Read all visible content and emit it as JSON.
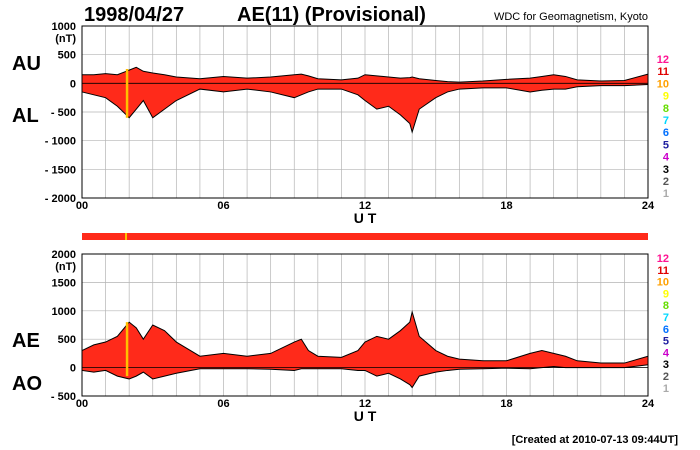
{
  "header": {
    "date": "1998/04/27",
    "index_title": "AE(11) (Provisional)",
    "source": "WDC for Geomagnetism, Kyoto"
  },
  "footer": {
    "created": "[Created at 2010-07-13 09:44UT]"
  },
  "colors": {
    "fill": "#ff2a1a",
    "spike": "#ffc000",
    "grid": "#b4b4b4",
    "axis": "#000000"
  },
  "station_scale": [
    {
      "label": "12",
      "color": "#ff1493"
    },
    {
      "label": "11",
      "color": "#e00000"
    },
    {
      "label": "10",
      "color": "#ffa000"
    },
    {
      "label": "9",
      "color": "#ffff00"
    },
    {
      "label": "8",
      "color": "#66dd00"
    },
    {
      "label": "7",
      "color": "#00d8ff"
    },
    {
      "label": "6",
      "color": "#0070ff"
    },
    {
      "label": "5",
      "color": "#2020a0"
    },
    {
      "label": "4",
      "color": "#cc00cc"
    },
    {
      "label": "3",
      "color": "#000000"
    },
    {
      "label": "2",
      "color": "#555555"
    },
    {
      "label": "1",
      "color": "#aaaaaa"
    }
  ],
  "chart_data": [
    {
      "type": "area",
      "unit": "(nT)",
      "xlabel": "U T",
      "xlim": [
        0,
        24
      ],
      "ylim": [
        -2000,
        1000
      ],
      "x_ticks": [
        "00",
        "06",
        "12",
        "18",
        "24"
      ],
      "x_tick_values": [
        0,
        6,
        12,
        18,
        24
      ],
      "y_ticks": [
        "1000",
        "500",
        "0",
        "- 500",
        "- 1000",
        "- 1500",
        "- 2000"
      ],
      "y_tick_values": [
        1000,
        500,
        0,
        -500,
        -1000,
        -1500,
        -2000
      ],
      "grid": true,
      "series_labels": {
        "upper": "AU",
        "lower": "AL"
      },
      "x": [
        0,
        0.5,
        1,
        1.5,
        2,
        2.3,
        2.6,
        3,
        3.5,
        4,
        5,
        6,
        7,
        8,
        9,
        9.3,
        9.6,
        10,
        11,
        11.7,
        12,
        12.5,
        13,
        13.5,
        13.9,
        14,
        14.3,
        15,
        15.5,
        16,
        17,
        18,
        19,
        19.5,
        20,
        20.5,
        21,
        22,
        23,
        24
      ],
      "upper": [
        150,
        150,
        170,
        150,
        230,
        280,
        210,
        180,
        150,
        110,
        80,
        120,
        90,
        110,
        150,
        160,
        130,
        80,
        60,
        90,
        150,
        130,
        110,
        90,
        100,
        110,
        80,
        50,
        30,
        20,
        40,
        70,
        90,
        120,
        150,
        120,
        60,
        40,
        50,
        160
      ],
      "lower": [
        -150,
        -200,
        -250,
        -400,
        -600,
        -450,
        -300,
        -600,
        -450,
        -300,
        -100,
        -150,
        -100,
        -150,
        -250,
        -200,
        -150,
        -100,
        -100,
        -200,
        -300,
        -450,
        -400,
        -550,
        -700,
        -850,
        -450,
        -250,
        -150,
        -100,
        -80,
        -80,
        -150,
        -120,
        -100,
        -100,
        -60,
        -40,
        -40,
        -20
      ],
      "yellow_spike": {
        "x": 1.9,
        "range": [
          -600,
          250
        ]
      }
    },
    {
      "type": "area",
      "unit": "(nT)",
      "xlabel": "U T",
      "xlim": [
        0,
        24
      ],
      "ylim": [
        -500,
        2000
      ],
      "x_ticks": [
        "00",
        "06",
        "12",
        "18",
        "24"
      ],
      "x_tick_values": [
        0,
        6,
        12,
        18,
        24
      ],
      "y_ticks": [
        "2000",
        "1500",
        "1000",
        "500",
        "0",
        "- 500"
      ],
      "y_tick_values": [
        2000,
        1500,
        1000,
        500,
        0,
        -500
      ],
      "grid": true,
      "series_labels": {
        "upper": "AE",
        "lower": "AO"
      },
      "x": [
        0,
        0.5,
        1,
        1.5,
        2,
        2.3,
        2.6,
        3,
        3.5,
        4,
        5,
        6,
        7,
        8,
        9,
        9.3,
        9.6,
        10,
        11,
        11.7,
        12,
        12.5,
        13,
        13.5,
        13.9,
        14,
        14.3,
        15,
        15.5,
        16,
        17,
        18,
        19,
        19.5,
        20,
        20.5,
        21,
        22,
        23,
        24
      ],
      "upper": [
        300,
        400,
        450,
        550,
        800,
        700,
        500,
        750,
        650,
        450,
        200,
        250,
        200,
        250,
        450,
        500,
        300,
        200,
        180,
        300,
        450,
        550,
        500,
        650,
        800,
        980,
        550,
        300,
        200,
        150,
        120,
        120,
        250,
        300,
        250,
        200,
        120,
        80,
        80,
        200
      ],
      "lower": [
        -50,
        -80,
        -50,
        -150,
        -200,
        -150,
        -80,
        -200,
        -150,
        -100,
        -20,
        -20,
        -20,
        -30,
        -50,
        -20,
        -20,
        -20,
        -20,
        -50,
        -50,
        -150,
        -100,
        -200,
        -300,
        -350,
        -150,
        -80,
        -50,
        -30,
        -20,
        -10,
        -20,
        0,
        20,
        0,
        0,
        0,
        0,
        50
      ],
      "yellow_spike": {
        "x": 1.9,
        "range": [
          -150,
          800
        ]
      }
    }
  ]
}
